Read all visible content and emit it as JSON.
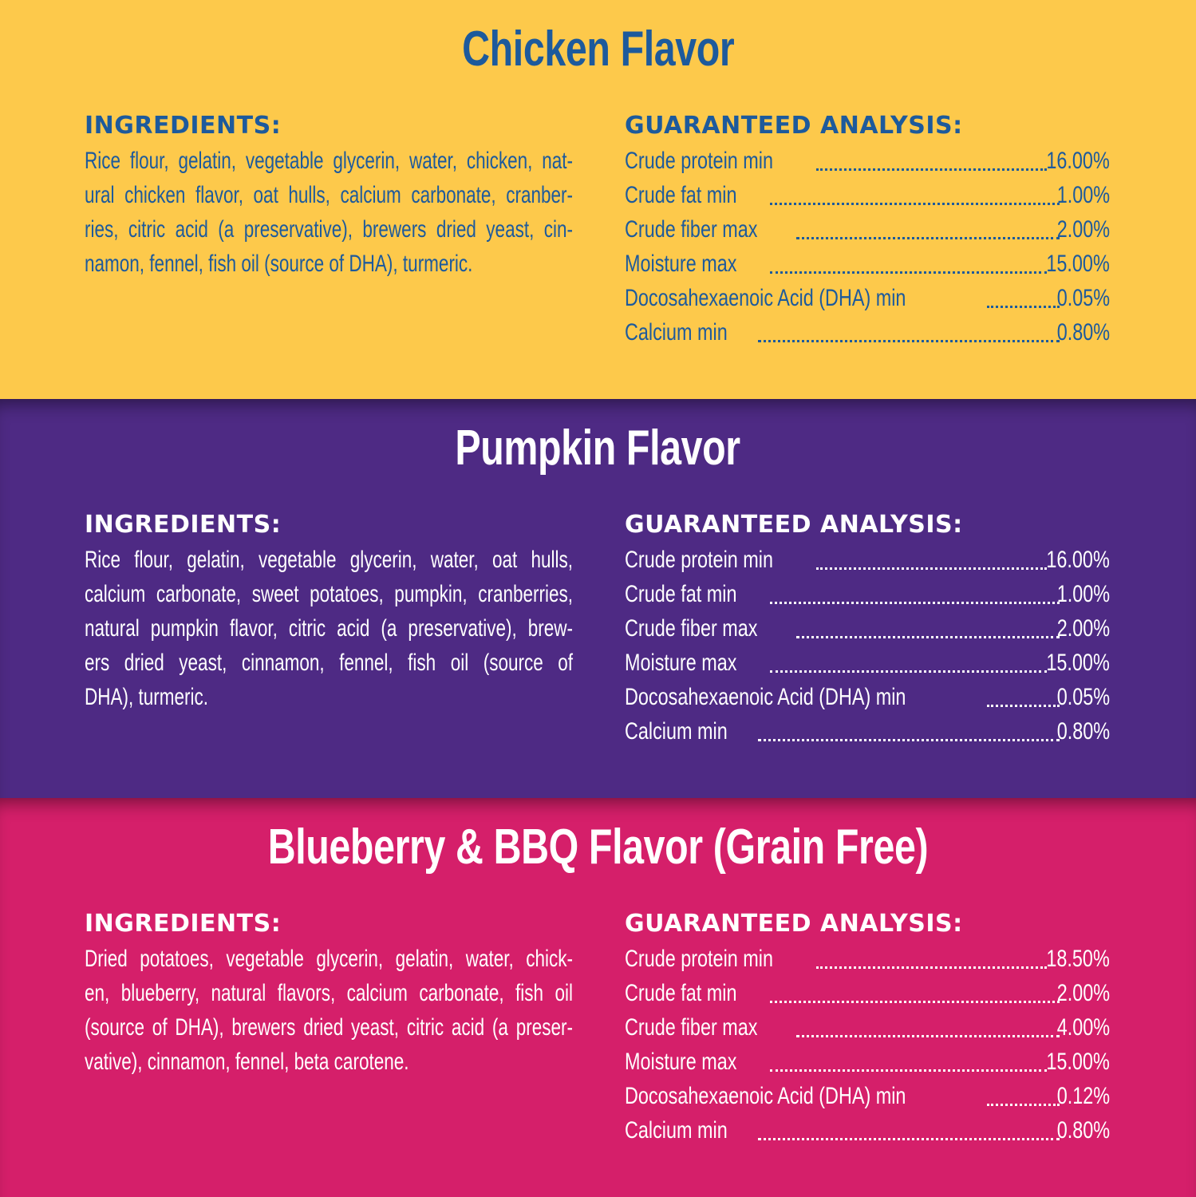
{
  "colors": {
    "chicken_bg": "#FDC94B",
    "chicken_text": "#1D5A9C",
    "pumpkin_bg": "#4E2A84",
    "pumpkin_text": "#FFFFFF",
    "blueberry_bg": "#D51F6A",
    "blueberry_text": "#FFFFFF"
  },
  "sections": [
    {
      "title": "Chicken Flavor",
      "ingredients_heading": "INGREDIENTS:",
      "ingredients_lines": [
        "Rice flour, gelatin, vegetable glycerin, water, chicken, nat-",
        "ural chicken flavor, oat hulls, calcium carbonate, cranber-",
        "ries, citric acid (a preservative), brewers dried yeast, cin-",
        "namon, fennel, fish oil (source of DHA), turmeric."
      ],
      "analysis_heading": "GUARANTEED ANALYSIS:",
      "analysis": [
        {
          "label": "Crude protein min",
          "value": "16.00%"
        },
        {
          "label": "Crude fat min",
          "value": "1.00%"
        },
        {
          "label": "Crude fiber max",
          "value": "2.00%"
        },
        {
          "label": "Moisture max",
          "value": "15.00%"
        },
        {
          "label": "Docosahexaenoic Acid (DHA) min",
          "value": "0.05%"
        },
        {
          "label": "Calcium min",
          "value": "0.80%"
        }
      ]
    },
    {
      "title": "Pumpkin Flavor",
      "ingredients_heading": "INGREDIENTS:",
      "ingredients_lines": [
        "Rice flour, gelatin, vegetable glycerin, water, oat hulls,",
        "calcium carbonate, sweet potatoes, pumpkin, cranberries,",
        "natural pumpkin flavor, citric acid (a preservative), brew-",
        "ers dried yeast, cinnamon, fennel, fish oil (source of",
        "DHA), turmeric."
      ],
      "analysis_heading": "GUARANTEED ANALYSIS:",
      "analysis": [
        {
          "label": "Crude protein min",
          "value": "16.00%"
        },
        {
          "label": "Crude fat min",
          "value": "1.00%"
        },
        {
          "label": "Crude fiber max",
          "value": "2.00%"
        },
        {
          "label": "Moisture max",
          "value": "15.00%"
        },
        {
          "label": "Docosahexaenoic Acid (DHA) min",
          "value": "0.05%"
        },
        {
          "label": "Calcium min",
          "value": "0.80%"
        }
      ]
    },
    {
      "title": "Blueberry & BBQ Flavor (Grain Free)",
      "ingredients_heading": "INGREDIENTS:",
      "ingredients_lines": [
        "Dried potatoes, vegetable glycerin, gelatin, water, chick-",
        "en, blueberry, natural flavors, calcium carbonate, fish oil",
        "(source of DHA), brewers dried yeast, citric acid (a preser-",
        "vative), cinnamon, fennel, beta carotene."
      ],
      "analysis_heading": "GUARANTEED ANALYSIS:",
      "analysis": [
        {
          "label": "Crude protein min",
          "value": "18.50%"
        },
        {
          "label": "Crude fat min",
          "value": "2.00%"
        },
        {
          "label": "Crude fiber max",
          "value": "4.00%"
        },
        {
          "label": "Moisture max",
          "value": "15.00%"
        },
        {
          "label": "Docosahexaenoic Acid (DHA) min",
          "value": "0.12%"
        },
        {
          "label": "Calcium min",
          "value": "0.80%"
        }
      ]
    }
  ]
}
